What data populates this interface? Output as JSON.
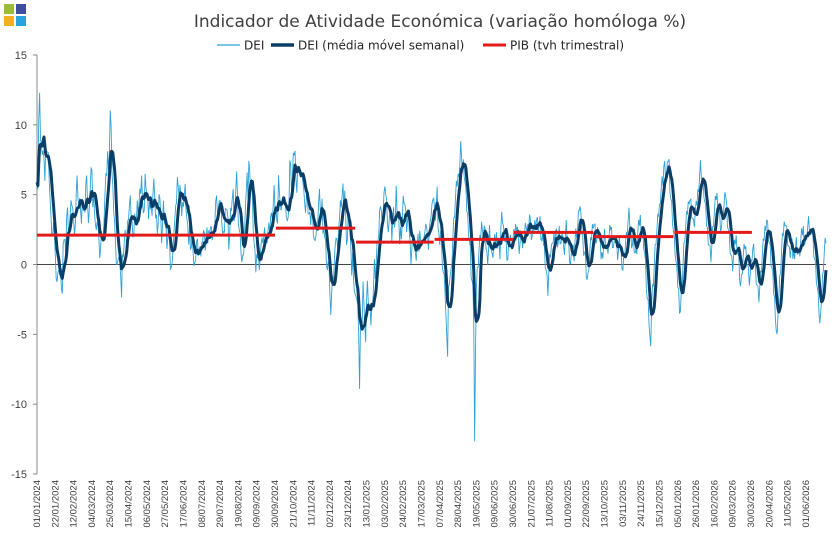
{
  "chart_data": {
    "type": "line",
    "title": "Indicador de Atividade Económica (variação homóloga %)",
    "ylim": [
      -15,
      15
    ],
    "yticks": [
      -15,
      -10,
      -5,
      0,
      5,
      10,
      15
    ],
    "x_tick_labels": [
      "01/01/2024",
      "22/01/2024",
      "12/02/2024",
      "04/03/2024",
      "25/03/2024",
      "15/04/2024",
      "06/05/2024",
      "27/05/2024",
      "17/06/2024",
      "08/07/2024",
      "29/07/2024",
      "19/08/2024",
      "09/09/2024",
      "30/09/2024",
      "21/10/2024",
      "11/11/2024",
      "02/12/2024",
      "23/12/2024",
      "13/01/2025",
      "03/02/2025",
      "24/02/2025",
      "17/03/2025",
      "07/04/2025",
      "28/04/2025",
      "19/05/2025",
      "09/06/2025",
      "30/06/2025",
      "21/07/2025",
      "11/08/2025",
      "01/09/2025",
      "22/09/2025",
      "13/10/2025",
      "03/11/2025",
      "24/11/2025",
      "15/12/2025",
      "05/01/2026",
      "26/01/2026",
      "16/02/2026",
      "09/03/2026",
      "30/03/2026",
      "20/04/2026",
      "11/05/2026",
      "01/06/2026"
    ],
    "legend": {
      "position": "top",
      "entries": [
        "DEI",
        "DEI (média móvel semanal)",
        "PIB (tvh trimestral)"
      ]
    },
    "colors": {
      "dei": "#2ea2d6",
      "dei_ma": "#0b3e66",
      "pib": "#e31a1c"
    },
    "series": [
      {
        "name": "DEI",
        "x_start": "2024-01-01",
        "frequency": "daily",
        "style": "thin",
        "values": [
          6.5,
          5.2,
          14.3,
          9.1,
          7.8,
          8.5,
          7.2,
          6.1,
          9.0,
          8.3,
          7.6,
          6.0,
          3.2,
          2.5,
          1.8,
          3.0,
          0.5,
          -0.6,
          -1.5,
          0.2,
          -0.9,
          -0.4,
          -2.9,
          1.1,
          2.4,
          0.6,
          3.5,
          3.8,
          2.1,
          2.9,
          5.4,
          3.2,
          3.8,
          1.5,
          4.6,
          6.2,
          5.1,
          3.9,
          4.7,
          2.8,
          4.5,
          3.7,
          4.2,
          6.3,
          5.8,
          2.9,
          3.5,
          6.9,
          6.6,
          4.2,
          5.0,
          3.3,
          2.1,
          4.0,
          1.6,
          0.8,
          1.2,
          2.2,
          1.4,
          4.2,
          5.8,
          6.6,
          8.2,
          5.5,
          11.4,
          9.3,
          6.0,
          4.8,
          3.3,
          0.9,
          0.2,
          -0.3,
          1.1,
          -0.6,
          -2.7,
          0.7,
          1.3,
          2.0,
          2.5,
          1.8,
          3.4,
          4.1,
          4.4,
          3.0,
          2.6,
          2.2,
          3.9,
          2.9,
          4.2,
          3.8,
          4.7,
          5.3,
          6.4,
          4.0,
          3.3,
          7.8,
          3.9,
          5.4,
          2.8,
          4.5,
          3.9,
          4.1,
          5.6,
          6.0,
          3.3,
          3.0,
          2.2,
          4.4,
          5.1,
          1.7,
          2.9,
          4.4,
          3.1,
          2.5,
          1.4,
          1.9,
          2.6,
          -0.6,
          0.7,
          -0.2,
          2.7,
          3.3,
          4.0,
          6.3,
          4.8,
          5.0,
          6.1,
          3.4,
          4.4,
          4.9,
          5.3,
          3.9,
          2.4,
          1.6,
          2.8,
          0.9,
          2.1,
          1.3,
          -0.9,
          0.5,
          1.6,
          1.1,
          0.6,
          1.9,
          0.3,
          2.0,
          2.5,
          1.6,
          1.2,
          2.1,
          1.7,
          2.5,
          2.9,
          2.3,
          2.2,
          1.9,
          3.3,
          4.8,
          3.9,
          3.7,
          5.5,
          4.1,
          3.6,
          2.0,
          1.8,
          4.0,
          3.3,
          4.5,
          1.5,
          2.2,
          4.1,
          4.6,
          5.0,
          3.1,
          3.5,
          7.2,
          4.3,
          3.0,
          2.0,
          1.2,
          -0.3,
          0.8,
          1.9,
          4.0,
          6.8,
          5.2,
          8.1,
          5.0,
          6.3,
          4.4,
          1.9,
          0.6,
          -0.4,
          0.9,
          1.2,
          -0.8,
          1.6,
          1.3,
          1.9,
          1.7,
          2.3,
          1.7,
          2.2,
          2.8,
          2.4,
          3.5,
          3.1,
          3.9,
          5.1,
          3.8,
          4.1,
          2.9,
          6.8,
          4.9,
          3.2,
          5.1,
          3.8,
          4.6,
          4.0,
          3.9,
          2.5,
          4.7,
          8.4,
          5.0,
          6.1,
          7.7,
          8.4,
          6.9,
          5.0,
          7.3,
          6.7,
          6.2,
          7.1,
          5.2,
          5.6,
          3.7,
          4.9,
          5.0,
          3.9,
          3.4,
          3.1,
          4.0,
          3.0,
          1.4,
          2.4,
          2.1,
          3.3,
          4.4,
          5.1,
          3.3,
          4.2,
          2.0,
          2.7,
          2.2,
          -0.8,
          0.6,
          -0.4,
          -1.9,
          -4.6,
          -0.3,
          -1.7,
          1.7,
          1.2,
          2.4,
          0.6,
          3.2,
          4.6,
          3.3,
          6.3,
          4.4,
          5.5,
          2.3,
          1.4,
          3.2,
          3.6,
          1.0,
          -0.6,
          0.9,
          -1.4,
          -2.6,
          -1.7,
          -3.1,
          -3.8,
          -9.5,
          -2.9,
          -5.6,
          -0.5,
          -3.4,
          -6.0,
          -2.6,
          -1.4,
          -3.1,
          -3.6,
          -4.2,
          -2.6,
          -1.8,
          0.2,
          -0.9,
          0.8,
          2.1,
          1.9,
          4.7,
          3.6,
          3.3,
          4.1,
          6.2,
          4.8,
          3.9,
          2.1,
          2.7,
          4.7,
          2.0,
          3.3,
          3.9,
          2.4,
          5.2,
          3.8,
          3.1,
          1.6,
          2.6,
          2.3,
          4.5,
          4.9,
          4.0,
          2.6,
          3.0,
          3.4,
          1.7,
          0.6,
          1.5,
          2.2,
          1.3,
          0.2,
          0.9,
          1.7,
          1.1,
          2.7,
          1.8,
          1.1,
          2.5,
          1.4,
          3.3,
          2.3,
          0.9,
          2.1,
          4.0,
          3.2,
          5.2,
          4.7,
          3.1,
          4.0,
          5.0,
          2.1,
          1.8,
          2.6,
          0.9,
          -0.3,
          -1.1,
          -1.8,
          -4.8,
          -7.2,
          -1.4,
          -0.5,
          -0.9,
          0.6,
          2.3,
          3.4,
          4.6,
          5.6,
          6.0,
          6.8,
          7.3,
          9.2,
          6.5,
          7.1,
          6.4,
          5.0,
          4.0,
          3.2,
          2.1,
          1.0,
          -0.9,
          -1.4,
          -3.1,
          -14.5,
          -1.9,
          -0.6,
          0.5,
          1.4,
          2.2,
          3.1,
          1.5,
          2.9,
          2.0,
          1.2,
          0.3,
          1.1,
          2.7,
          1.6,
          0.2,
          0.9,
          1.8,
          1.3,
          2.1,
          1.6,
          1.5,
          0.8,
          2.9,
          3.6,
          2.8,
          1.1,
          2.3,
          1.0,
          0.4,
          1.7,
          2.4,
          1.0,
          1.6,
          1.9,
          2.1,
          2.8,
          3.2,
          2.0,
          1.1,
          1.7,
          2.4,
          0.9,
          1.5,
          2.6,
          3.3,
          2.2,
          2.9,
          3.6,
          2.5,
          1.8,
          2.2,
          2.7,
          3.1,
          3.4,
          3.0,
          2.6,
          3.2,
          2.1,
          1.4,
          1.8,
          1.1,
          0.2,
          -0.7,
          -1.9,
          -0.3,
          0.6,
          1.3,
          0.9,
          2.2,
          1.8,
          2.6,
          2.0,
          1.4,
          2.3,
          1.7,
          1.1,
          2.5,
          0.8,
          1.6,
          2.9,
          2.3,
          1.2,
          0.6,
          -0.1,
          0.5,
          1.3,
          0.8,
          1.9,
          2.5,
          2.2,
          3.6,
          4.6,
          3.1,
          2.4,
          1.4,
          1.0,
          0.6,
          -0.8,
          -1.4,
          -0.1,
          0.9,
          1.7,
          2.6,
          3.3,
          2.8,
          2.1,
          1.6,
          2.5,
          1.9,
          1.2,
          0.4,
          0.9,
          1.4,
          2.4,
          1.6,
          0.8,
          1.2,
          1.9,
          2.8,
          2.4,
          1.5,
          1.1,
          2.1,
          1.4,
          0.6,
          0.9,
          1.6,
          1.0,
          0.3,
          -0.4,
          0.7,
          1.4,
          1.9,
          2.6,
          3.6,
          2.9,
          2.1,
          1.4,
          1.9,
          1.2,
          0.5,
          1.0,
          2.3,
          2.8,
          3.4,
          2.7,
          2.2,
          1.7,
          0.8,
          -0.6,
          -2.4,
          -3.1,
          -4.3,
          -6.3,
          -2.9,
          -1.6,
          -0.7,
          0.8,
          1.9,
          2.5,
          3.6,
          4.1,
          5.3,
          5.9,
          6.1,
          7.3,
          6.6,
          6.0,
          6.9,
          8.1,
          5.9,
          4.7,
          3.9,
          2.6,
          1.5,
          0.8,
          -0.6,
          -1.4,
          -2.1,
          -3.6,
          -2.4,
          -1.1,
          0.6,
          1.9,
          2.5,
          3.6,
          4.1,
          5.0,
          4.6,
          4.0,
          3.3,
          2.6,
          3.4,
          3.9,
          4.6,
          5.5,
          6.3,
          7.2,
          6.4,
          5.8,
          5.1,
          4.1,
          3.2,
          2.4,
          1.9,
          1.2,
          0.6,
          1.4,
          2.8,
          3.6,
          4.4,
          5.1,
          4.6,
          3.9,
          3.2,
          2.5,
          2.9,
          3.8,
          4.3,
          5.2,
          3.9,
          2.9,
          2.1,
          1.2,
          0.4,
          -0.3,
          0.6,
          1.4,
          2.0,
          1.4,
          0.8,
          -0.3,
          -1.6,
          -1.1,
          0.2,
          0.8,
          1.4,
          0.9,
          0.3,
          -0.6,
          -1.2,
          -0.4,
          0.6,
          1.1,
          0.7,
          -0.2,
          -0.9,
          -1.7,
          -2.3,
          -1.6,
          -0.6,
          0.4,
          1.3,
          2.2,
          2.9,
          3.3,
          2.6,
          1.8,
          1.0,
          0.1,
          -0.7,
          -1.8,
          -2.6,
          -3.8,
          -5.9,
          -2.8,
          -1.9,
          -0.6,
          0.8,
          1.9,
          2.6,
          3.4,
          2.8,
          2.1,
          1.4,
          0.7,
          0.9,
          1.4,
          0.6,
          0.8,
          1.2,
          1.6,
          1.1,
          0.5,
          0.9,
          1.7,
          2.2,
          2.6,
          1.9,
          1.5,
          2.2,
          2.7,
          3.1,
          2.4,
          1.8,
          2.6,
          1.4,
          0.6,
          -0.4,
          -1.2,
          -2.4,
          -3.3,
          -4.9,
          -2.6,
          -0.9,
          0.6,
          1.4,
          2.0
        ]
      },
      {
        "name": "DEI (média móvel semanal)",
        "x_start": "2024-01-01",
        "frequency": "daily",
        "style": "thick",
        "smoothing_window_days": 7
      },
      {
        "name": "PIB (tvh trimestral)",
        "type": "step",
        "segments": [
          {
            "start": "2024-01-01",
            "end": "2024-09-30",
            "value": 2.1
          },
          {
            "start": "2024-10-01",
            "end": "2024-12-31",
            "value": 2.6
          },
          {
            "start": "2025-01-01",
            "end": "2025-03-31",
            "value": 1.6
          },
          {
            "start": "2025-04-01",
            "end": "2025-06-30",
            "value": 1.8
          },
          {
            "start": "2025-07-01",
            "end": "2025-09-30",
            "value": 2.3
          },
          {
            "start": "2025-10-01",
            "end": "2025-12-31",
            "value": 2.0
          },
          {
            "start": "2026-01-01",
            "end": "2026-03-31",
            "value": 2.3
          }
        ]
      }
    ]
  }
}
